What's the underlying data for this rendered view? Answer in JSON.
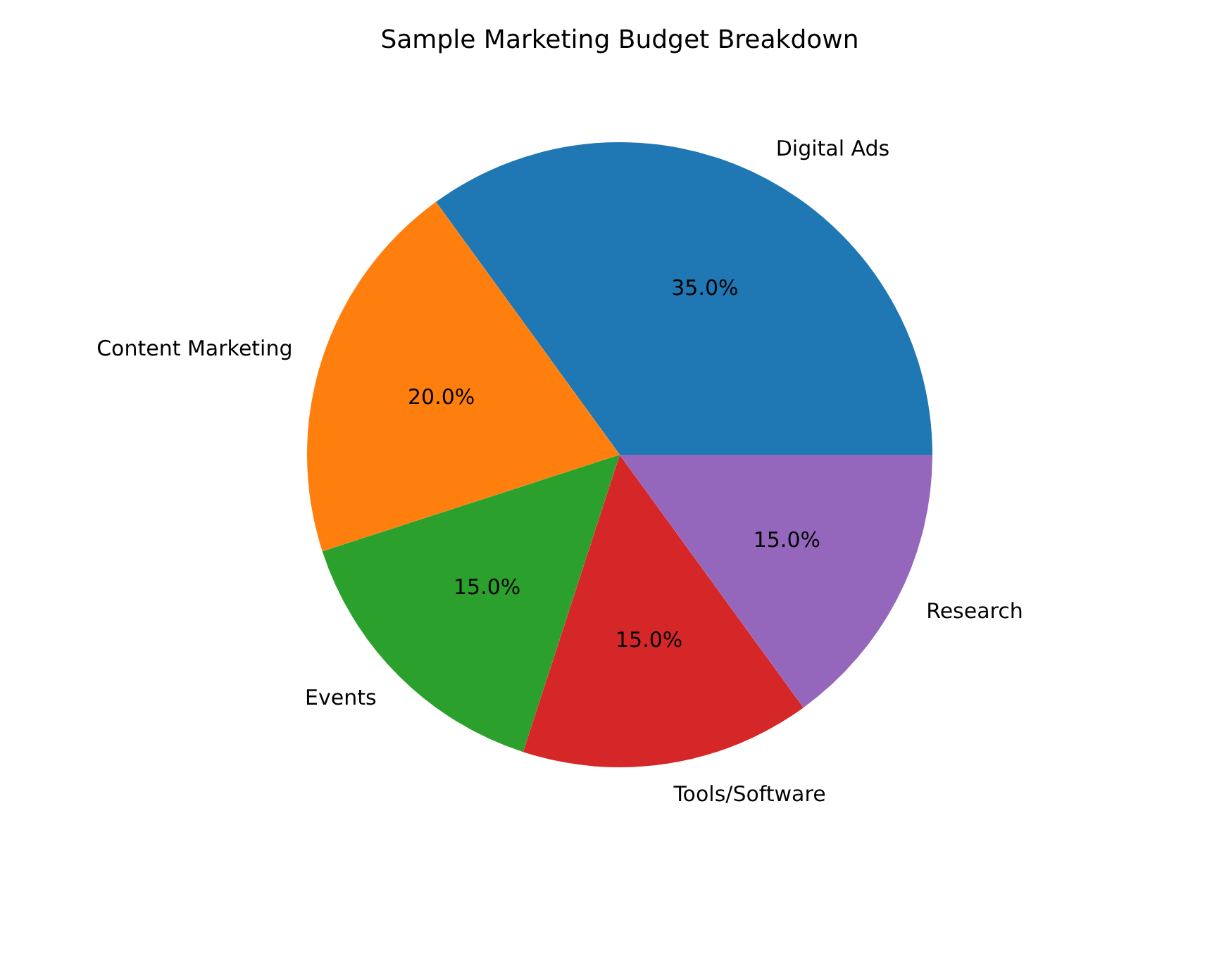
{
  "chart_data": {
    "type": "pie",
    "title": "Sample Marketing Budget Breakdown",
    "categories": [
      "Digital Ads",
      "Content Marketing",
      "Events",
      "Tools/Software",
      "Research"
    ],
    "values": [
      35,
      20,
      15,
      15,
      15
    ],
    "colors": [
      "#1f77b4",
      "#ff7f0e",
      "#2ca02c",
      "#d62728",
      "#9467bd"
    ],
    "value_labels": [
      "35.0%",
      "20.0%",
      "15.0%",
      "15.0%",
      "15.0%"
    ]
  }
}
